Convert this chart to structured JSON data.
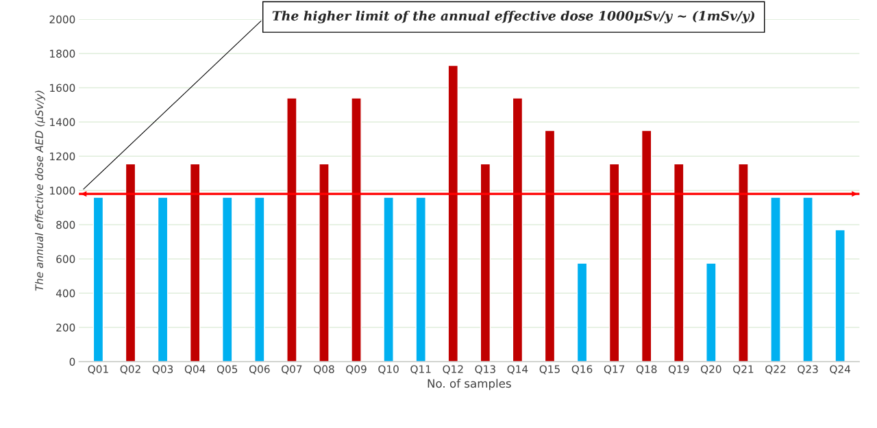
{
  "chart_data": {
    "type": "bar",
    "xlabel": "No. of samples",
    "ylabel": "The annual effective dose AED (μSv/y)",
    "categories": [
      "Q01",
      "Q02",
      "Q03",
      "Q04",
      "Q05",
      "Q06",
      "Q07",
      "Q08",
      "Q09",
      "Q10",
      "Q11",
      "Q12",
      "Q13",
      "Q14",
      "Q15",
      "Q16",
      "Q17",
      "Q18",
      "Q19",
      "Q20",
      "Q21",
      "Q22",
      "Q23",
      "Q24"
    ],
    "values": [
      960,
      1155,
      960,
      1155,
      960,
      960,
      1540,
      1155,
      1540,
      960,
      960,
      1730,
      1155,
      1540,
      1350,
      575,
      1155,
      1350,
      1155,
      575,
      1155,
      960,
      960,
      770
    ],
    "colors": [
      "#00b0f0",
      "#c00000",
      "#00b0f0",
      "#c00000",
      "#00b0f0",
      "#00b0f0",
      "#c00000",
      "#c00000",
      "#c00000",
      "#00b0f0",
      "#00b0f0",
      "#c00000",
      "#c00000",
      "#c00000",
      "#c00000",
      "#00b0f0",
      "#c00000",
      "#c00000",
      "#c00000",
      "#00b0f0",
      "#c00000",
      "#00b0f0",
      "#00b0f0",
      "#00b0f0"
    ],
    "ylim": [
      0,
      2000
    ],
    "yticks": [
      0,
      200,
      400,
      600,
      800,
      1000,
      1200,
      1400,
      1600,
      1800,
      2000
    ],
    "grid": "y",
    "ref_lines": [
      {
        "axis": "y",
        "value": 980,
        "color": "#ff0000",
        "label": "The higher limit of the annual effective dose 1000μSv/y ~ (1mSv/y)"
      }
    ]
  }
}
